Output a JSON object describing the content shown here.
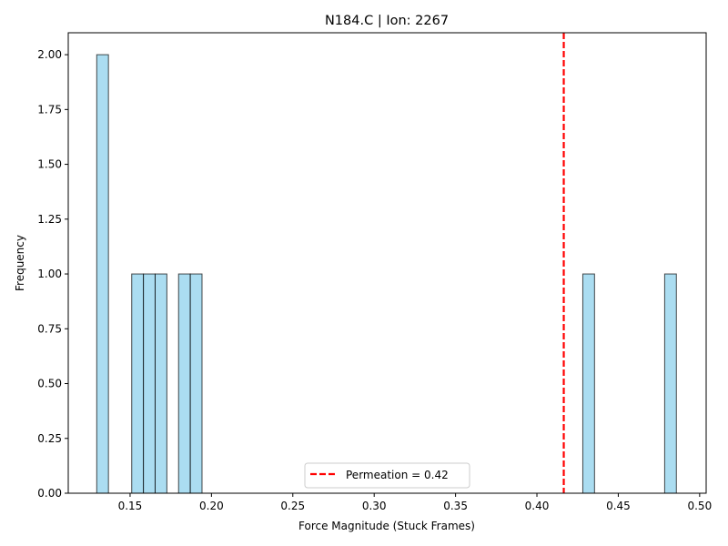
{
  "chart_data": {
    "type": "bar",
    "title": "N184.C | Ion: 2267",
    "xlabel": "Force Magnitude (Stuck Frames)",
    "ylabel": "Frequency",
    "xlim": [
      0.112,
      0.504
    ],
    "ylim": [
      0,
      2.1
    ],
    "bins": [
      {
        "x0": 0.1295,
        "x1": 0.1367,
        "count": 2
      },
      {
        "x0": 0.151,
        "x1": 0.1582,
        "count": 1
      },
      {
        "x0": 0.1582,
        "x1": 0.1654,
        "count": 1
      },
      {
        "x0": 0.1654,
        "x1": 0.1726,
        "count": 1
      },
      {
        "x0": 0.1798,
        "x1": 0.187,
        "count": 1
      },
      {
        "x0": 0.187,
        "x1": 0.1942,
        "count": 1
      },
      {
        "x0": 0.4282,
        "x1": 0.4354,
        "count": 1
      },
      {
        "x0": 0.4785,
        "x1": 0.4857,
        "count": 1
      }
    ],
    "xticks": [
      "0.15",
      "0.20",
      "0.25",
      "0.30",
      "0.35",
      "0.40",
      "0.45",
      "0.50"
    ],
    "xtick_values": [
      0.15,
      0.2,
      0.25,
      0.3,
      0.35,
      0.4,
      0.45,
      0.5
    ],
    "yticks": [
      "0.00",
      "0.25",
      "0.50",
      "0.75",
      "1.00",
      "1.25",
      "1.50",
      "1.75",
      "2.00"
    ],
    "ytick_values": [
      0,
      0.25,
      0.5,
      0.75,
      1.0,
      1.25,
      1.5,
      1.75,
      2.0
    ],
    "reference_line": {
      "x": 0.4165,
      "label": "Permeation = 0.42",
      "color": "#ff0000",
      "style": "dashed"
    },
    "bar_color": "#87ceeb",
    "bar_edge_color": "#000000",
    "grid": false,
    "legend_position": "lower center"
  }
}
